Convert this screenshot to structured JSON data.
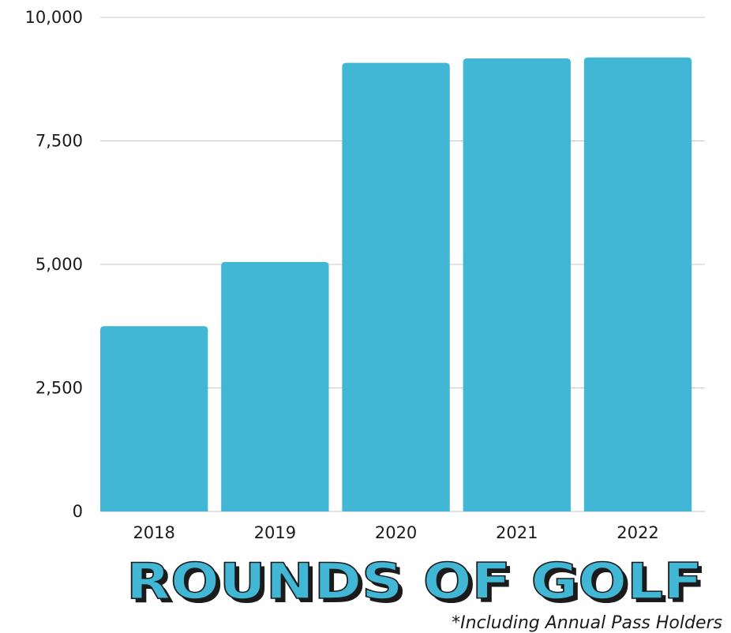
{
  "chart_data": {
    "type": "bar",
    "title": "ROUNDS OF GOLF",
    "footnote": "*Including Annual Pass Holders",
    "categories": [
      "2018",
      "2019",
      "2020",
      "2021",
      "2022"
    ],
    "values": [
      3750,
      5050,
      9080,
      9170,
      9190
    ],
    "ylim": [
      0,
      10000
    ],
    "yticks": [
      0,
      2500,
      5000,
      7500,
      10000
    ],
    "ytick_labels": [
      "0",
      "2,500",
      "5,000",
      "7,500",
      "10,000"
    ],
    "xlabel": "",
    "ylabel": "",
    "grid": true,
    "bar_color": "#41b6d5",
    "grid_color": "#c8c8c8",
    "title_shadow_color": "#1b1b1b"
  }
}
